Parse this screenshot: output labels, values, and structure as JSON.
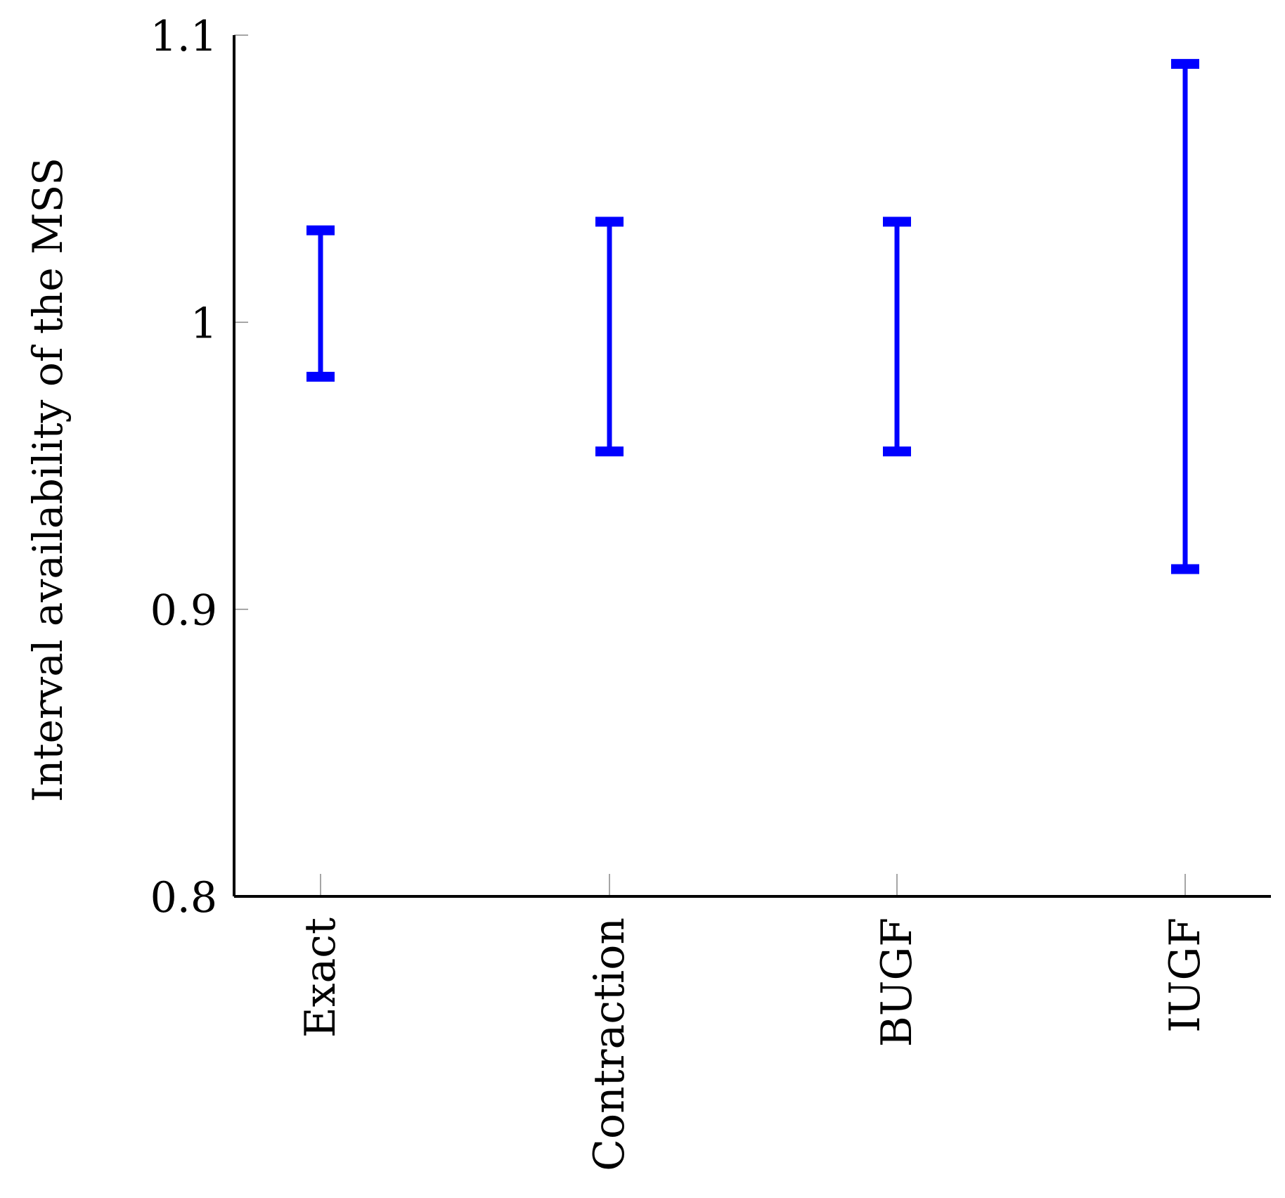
{
  "chart_data": {
    "type": "errorbar",
    "title": "",
    "xlabel": "",
    "ylabel": "Interval availability of the MSS",
    "ylim": [
      0.8,
      1.1
    ],
    "yticks": [
      "0.8",
      "0.9",
      "1",
      "1.1"
    ],
    "categories": [
      "Exact",
      "Contraction",
      "BUGF",
      "IUGF"
    ],
    "intervals": [
      {
        "category": "Exact",
        "lower": 0.981,
        "upper": 1.032
      },
      {
        "category": "Contraction",
        "lower": 0.955,
        "upper": 1.035
      },
      {
        "category": "BUGF",
        "lower": 0.955,
        "upper": 1.035
      },
      {
        "category": "IUGF",
        "lower": 0.914,
        "upper": 1.09
      }
    ],
    "color": "#0000ff",
    "grid": false,
    "legend": "none"
  }
}
